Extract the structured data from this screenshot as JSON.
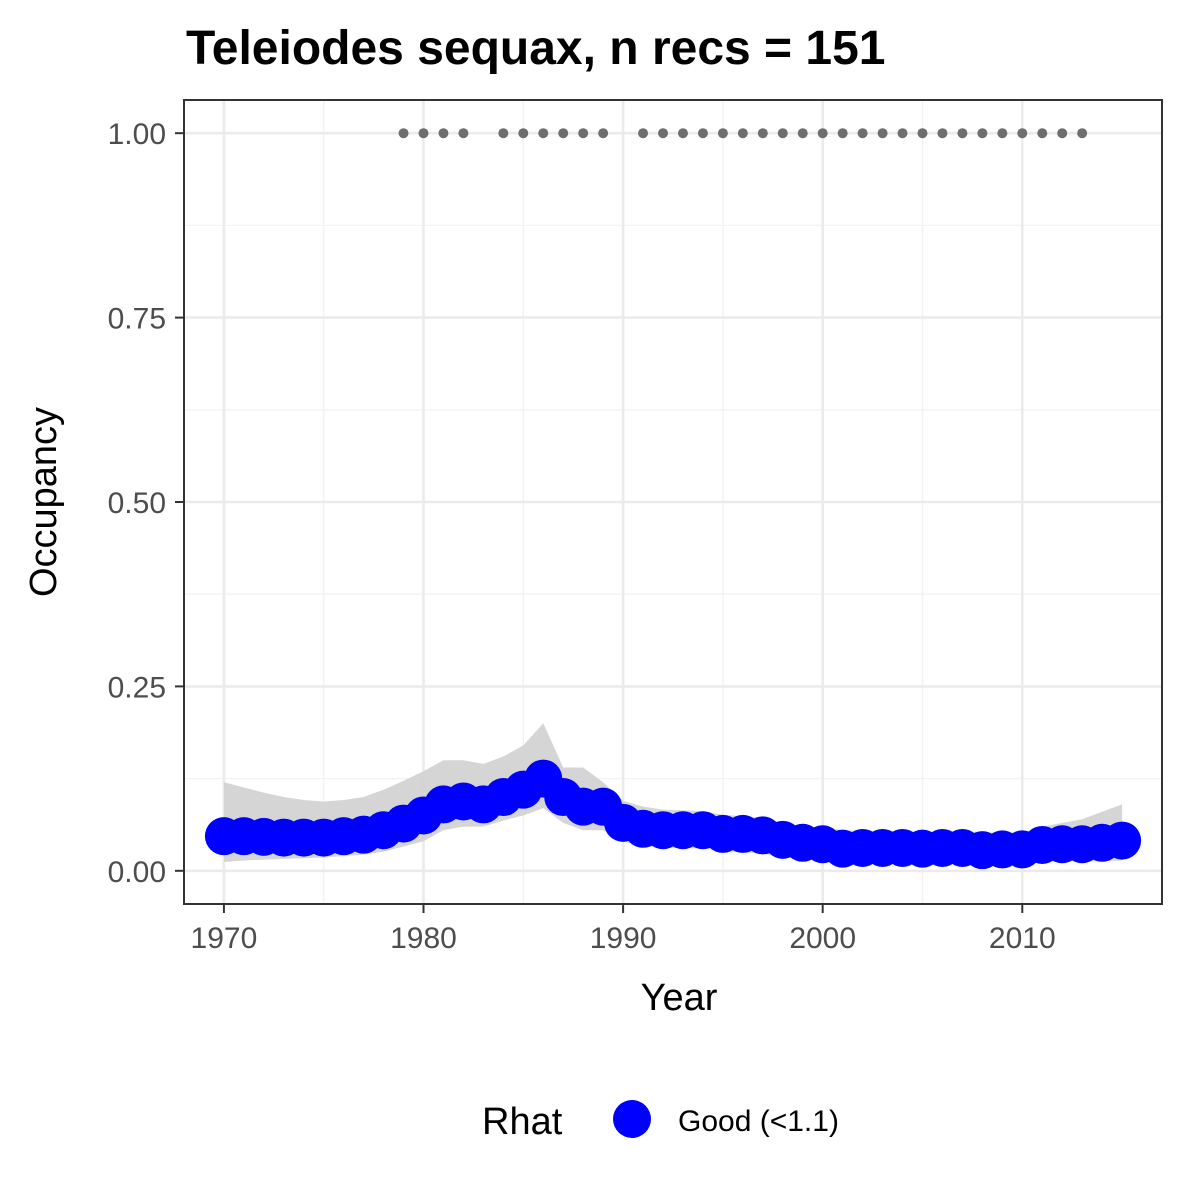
{
  "chart_data": {
    "type": "line",
    "title": "Teleiodes sequax, n recs = 151",
    "xlabel": "Year",
    "ylabel": "Occupancy",
    "xlim": [
      1968,
      2017
    ],
    "ylim": [
      -0.045,
      1.045
    ],
    "x_ticks": [
      1970,
      1980,
      1990,
      2000,
      2010
    ],
    "x_tick_labels": [
      "1970",
      "1980",
      "1990",
      "2000",
      "2010"
    ],
    "y_ticks": [
      0,
      0.25,
      0.5,
      0.75,
      1
    ],
    "y_tick_labels": [
      "0.00",
      "0.25",
      "0.50",
      "0.75",
      "1.00"
    ],
    "grid": true,
    "legend": {
      "position": "bottom",
      "title": "Rhat",
      "entries": [
        {
          "label": "Good (<1.1)",
          "color": "#0000ff"
        }
      ]
    },
    "series": [
      {
        "name": "Good (<1.1)",
        "color": "#0000ff",
        "band_color": "#d3d3d3",
        "x": [
          1970,
          1971,
          1972,
          1973,
          1974,
          1975,
          1976,
          1977,
          1978,
          1979,
          1980,
          1981,
          1982,
          1983,
          1984,
          1985,
          1986,
          1987,
          1988,
          1989,
          1990,
          1991,
          1992,
          1993,
          1994,
          1995,
          1996,
          1997,
          1998,
          1999,
          2000,
          2001,
          2002,
          2003,
          2004,
          2005,
          2006,
          2007,
          2008,
          2009,
          2010,
          2011,
          2012,
          2013,
          2014,
          2015
        ],
        "y": [
          0.047,
          0.047,
          0.046,
          0.045,
          0.045,
          0.045,
          0.047,
          0.049,
          0.055,
          0.064,
          0.075,
          0.09,
          0.094,
          0.09,
          0.1,
          0.11,
          0.125,
          0.1,
          0.087,
          0.087,
          0.065,
          0.057,
          0.055,
          0.055,
          0.055,
          0.05,
          0.05,
          0.048,
          0.042,
          0.038,
          0.036,
          0.03,
          0.031,
          0.031,
          0.031,
          0.03,
          0.031,
          0.031,
          0.028,
          0.029,
          0.029,
          0.035,
          0.036,
          0.036,
          0.038,
          0.041
        ],
        "lower": [
          0.012,
          0.014,
          0.015,
          0.016,
          0.017,
          0.018,
          0.02,
          0.022,
          0.026,
          0.033,
          0.04,
          0.055,
          0.06,
          0.06,
          0.068,
          0.075,
          0.085,
          0.065,
          0.055,
          0.055,
          0.04,
          0.033,
          0.031,
          0.031,
          0.03,
          0.027,
          0.025,
          0.023,
          0.019,
          0.016,
          0.014,
          0.012,
          0.012,
          0.012,
          0.012,
          0.011,
          0.011,
          0.011,
          0.01,
          0.01,
          0.01,
          0.012,
          0.013,
          0.013,
          0.013,
          0.014
        ],
        "upper": [
          0.12,
          0.113,
          0.106,
          0.1,
          0.096,
          0.094,
          0.096,
          0.1,
          0.11,
          0.122,
          0.135,
          0.15,
          0.15,
          0.145,
          0.155,
          0.17,
          0.2,
          0.14,
          0.14,
          0.12,
          0.095,
          0.087,
          0.083,
          0.082,
          0.081,
          0.076,
          0.074,
          0.072,
          0.065,
          0.06,
          0.059,
          0.055,
          0.054,
          0.054,
          0.054,
          0.053,
          0.053,
          0.054,
          0.052,
          0.052,
          0.052,
          0.06,
          0.065,
          0.07,
          0.08,
          0.09
        ]
      },
      {
        "name": "",
        "color": "#6e6e6e",
        "x": [
          1979,
          1980,
          1981,
          1982,
          1984,
          1985,
          1986,
          1987,
          1988,
          1989,
          1991,
          1992,
          1993,
          1994,
          1995,
          1996,
          1997,
          1998,
          1999,
          2000,
          2001,
          2002,
          2003,
          2004,
          2005,
          2006,
          2007,
          2008,
          2009,
          2010,
          2011,
          2012,
          2013
        ],
        "y": [
          1,
          1,
          1,
          1,
          1,
          1,
          1,
          1,
          1,
          1,
          1,
          1,
          1,
          1,
          1,
          1,
          1,
          1,
          1,
          1,
          1,
          1,
          1,
          1,
          1,
          1,
          1,
          1,
          1,
          1,
          1,
          1,
          1
        ]
      }
    ]
  }
}
